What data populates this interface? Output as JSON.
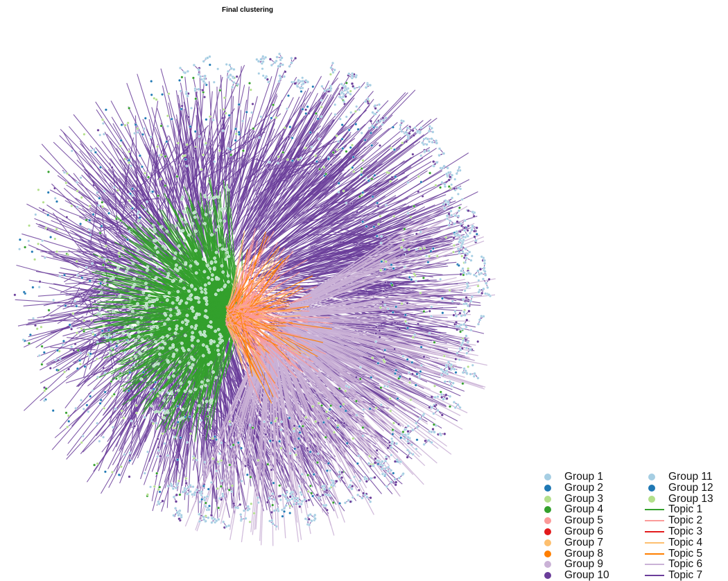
{
  "title": "Final clustering",
  "legend": {
    "groups": [
      {
        "label": "Group 1",
        "color": "#a6cee3"
      },
      {
        "label": "Group 2",
        "color": "#1f78b4"
      },
      {
        "label": "Group 3",
        "color": "#b2df8a"
      },
      {
        "label": "Group 4",
        "color": "#33a02c"
      },
      {
        "label": "Group 5",
        "color": "#fb9a99"
      },
      {
        "label": "Group 6",
        "color": "#e31a1c"
      },
      {
        "label": "Group 7",
        "color": "#fdbf6f"
      },
      {
        "label": "Group 8",
        "color": "#ff7f00"
      },
      {
        "label": "Group 9",
        "color": "#cab2d6"
      },
      {
        "label": "Group 10",
        "color": "#6a3d9a"
      },
      {
        "label": "Group 11",
        "color": "#a6cee3"
      },
      {
        "label": "Group 12",
        "color": "#1f78b4"
      },
      {
        "label": "Group 13",
        "color": "#b2df8a"
      }
    ],
    "topics": [
      {
        "label": "Topic 1",
        "color": "#33a02c"
      },
      {
        "label": "Topic 2",
        "color": "#fb9a99"
      },
      {
        "label": "Topic 3",
        "color": "#e31a1c"
      },
      {
        "label": "Topic 4",
        "color": "#fdbf6f"
      },
      {
        "label": "Topic 5",
        "color": "#ff7f00"
      },
      {
        "label": "Topic 6",
        "color": "#cab2d6"
      },
      {
        "label": "Topic 7",
        "color": "#6a3d9a"
      }
    ]
  },
  "chart_data": {
    "type": "network",
    "node_groups": [
      "Group 1",
      "Group 2",
      "Group 3",
      "Group 4",
      "Group 5",
      "Group 6",
      "Group 7",
      "Group 8",
      "Group 9",
      "Group 10",
      "Group 11",
      "Group 12",
      "Group 13"
    ],
    "edge_topics": [
      "Topic 1",
      "Topic 2",
      "Topic 3",
      "Topic 4",
      "Topic 5",
      "Topic 6",
      "Topic 7"
    ],
    "dominant_edge_topic": "Topic 7",
    "clusters": [
      {
        "topic": "Topic 1",
        "region": "center-left"
      },
      {
        "topic": "Topic 2",
        "region": "center"
      },
      {
        "topic": "Topic 5",
        "region": "center"
      },
      {
        "topic": "Topic 6",
        "region": "center-right / lower-right"
      },
      {
        "topic": "Topic 7",
        "region": "outer ring (all around)"
      }
    ]
  }
}
